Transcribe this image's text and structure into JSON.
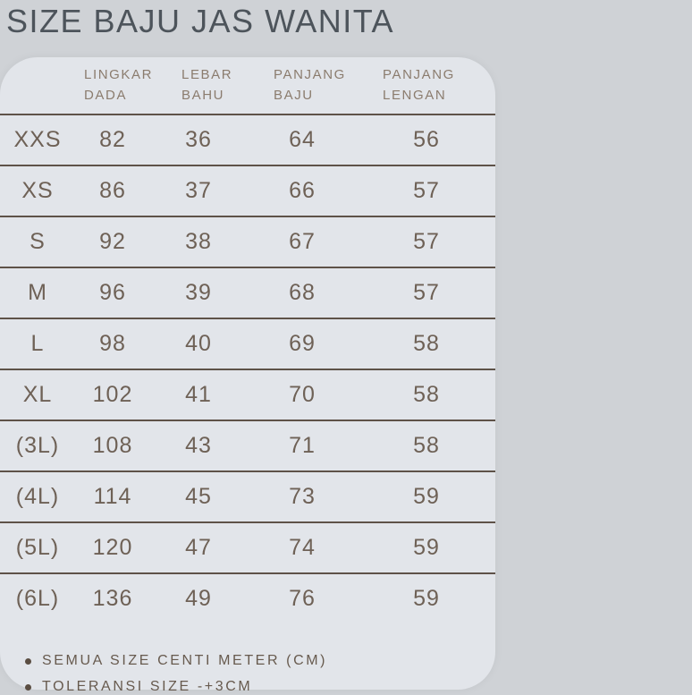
{
  "title": "SIZE BAJU JAS WANITA",
  "colors": {
    "page_background": "#cfd2d6",
    "card_background": "#e2e5ea",
    "title_text": "#4d545b",
    "header_text": "#8b7c6e",
    "cell_text": "#6e6156",
    "divider": "#5e5248",
    "note_text": "#675a4e"
  },
  "table": {
    "columns": [
      {
        "label": "LINGKAR DADA"
      },
      {
        "label": "LEBAR BAHU"
      },
      {
        "label": "PANJANG BAJU"
      },
      {
        "label": "PANJANG LENGAN"
      }
    ],
    "rows": [
      {
        "size": "XXS",
        "lingkar_dada": "82",
        "lebar_bahu": "36",
        "panjang_baju": "64",
        "panjang_lengan": "56"
      },
      {
        "size": "XS",
        "lingkar_dada": "86",
        "lebar_bahu": "37",
        "panjang_baju": "66",
        "panjang_lengan": "57"
      },
      {
        "size": "S",
        "lingkar_dada": "92",
        "lebar_bahu": "38",
        "panjang_baju": "67",
        "panjang_lengan": "57"
      },
      {
        "size": "M",
        "lingkar_dada": "96",
        "lebar_bahu": "39",
        "panjang_baju": "68",
        "panjang_lengan": "57"
      },
      {
        "size": "L",
        "lingkar_dada": "98",
        "lebar_bahu": "40",
        "panjang_baju": "69",
        "panjang_lengan": "58"
      },
      {
        "size": "XL",
        "lingkar_dada": "102",
        "lebar_bahu": "41",
        "panjang_baju": "70",
        "panjang_lengan": "58"
      },
      {
        "size": "(3L)",
        "lingkar_dada": "108",
        "lebar_bahu": "43",
        "panjang_baju": "71",
        "panjang_lengan": "58"
      },
      {
        "size": "(4L)",
        "lingkar_dada": "114",
        "lebar_bahu": "45",
        "panjang_baju": "73",
        "panjang_lengan": "59"
      },
      {
        "size": "(5L)",
        "lingkar_dada": "120",
        "lebar_bahu": "47",
        "panjang_baju": "74",
        "panjang_lengan": "59"
      },
      {
        "size": "(6L)",
        "lingkar_dada": "136",
        "lebar_bahu": "49",
        "panjang_baju": "76",
        "panjang_lengan": "59"
      }
    ]
  },
  "notes": [
    {
      "text": "SEMUA SIZE CENTI METER (CM)"
    },
    {
      "text": "TOLERANSI SIZE -+3CM"
    }
  ],
  "chart_data": {
    "type": "table",
    "title": "SIZE BAJU JAS WANITA",
    "categories": [
      "XXS",
      "XS",
      "S",
      "M",
      "L",
      "XL",
      "(3L)",
      "(4L)",
      "(5L)",
      "(6L)"
    ],
    "series": [
      {
        "name": "LINGKAR DADA",
        "values": [
          82,
          86,
          92,
          96,
          98,
          102,
          108,
          114,
          120,
          136
        ]
      },
      {
        "name": "LEBAR BAHU",
        "values": [
          36,
          37,
          38,
          39,
          40,
          41,
          43,
          45,
          47,
          49
        ]
      },
      {
        "name": "PANJANG BAJU",
        "values": [
          64,
          66,
          67,
          68,
          69,
          70,
          71,
          73,
          74,
          76
        ]
      },
      {
        "name": "PANJANG LENGAN",
        "values": [
          56,
          57,
          57,
          57,
          58,
          58,
          58,
          59,
          59,
          59
        ]
      }
    ],
    "unit": "cm",
    "annotations": [
      "SEMUA SIZE CENTI METER (CM)",
      "TOLERANSI SIZE -+3CM"
    ]
  }
}
